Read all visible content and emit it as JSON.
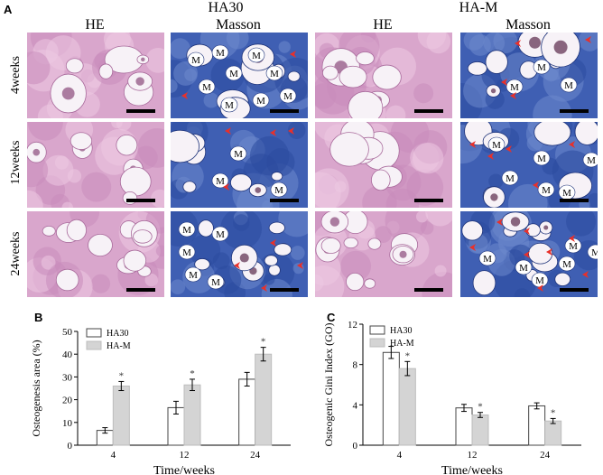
{
  "panel_a": {
    "letter": "A",
    "group_headers": [
      "HA30",
      "HA-M"
    ],
    "column_headers": [
      "HE",
      "Masson",
      "HE",
      "Masson"
    ],
    "row_labels": [
      "4weeks",
      "12weeks",
      "24weeks"
    ],
    "marker_label": "M",
    "colors": {
      "he": "#d9a6cc",
      "masson": "#3f5fb3",
      "arrow": "#e8302a"
    }
  },
  "chart_data": [
    {
      "letter": "B",
      "type": "bar",
      "categories": [
        "4",
        "12",
        "24"
      ],
      "series": [
        {
          "name": "HA30",
          "values": [
            6.5,
            16.5,
            29
          ],
          "errors": [
            1.2,
            2.8,
            3
          ]
        },
        {
          "name": "HA-M",
          "values": [
            26,
            26.5,
            40
          ],
          "errors": [
            2,
            2.5,
            3
          ]
        }
      ],
      "significance": [
        "*",
        "*",
        "*"
      ],
      "xlabel": "Time/weeks",
      "ylabel": "Osteogenesis area (%)",
      "ylim": [
        0,
        50
      ],
      "yticks": [
        "0",
        "10",
        "20",
        "30",
        "40",
        "50"
      ],
      "legend": "top-left"
    },
    {
      "letter": "C",
      "type": "bar",
      "categories": [
        "4",
        "12",
        "24"
      ],
      "series": [
        {
          "name": "HA30",
          "values": [
            9.2,
            3.7,
            3.9
          ],
          "errors": [
            0.6,
            0.35,
            0.3
          ]
        },
        {
          "name": "HA-M",
          "values": [
            7.6,
            3.0,
            2.4
          ],
          "errors": [
            0.7,
            0.25,
            0.25
          ]
        }
      ],
      "significance": [
        "*",
        "*",
        "*"
      ],
      "xlabel": "Time/weeks",
      "ylabel": "Osteogenic Gini Index (GO)",
      "ylim": [
        0,
        12
      ],
      "yticks": [
        "0",
        "4",
        "8",
        "12"
      ],
      "legend": "top-left"
    }
  ]
}
